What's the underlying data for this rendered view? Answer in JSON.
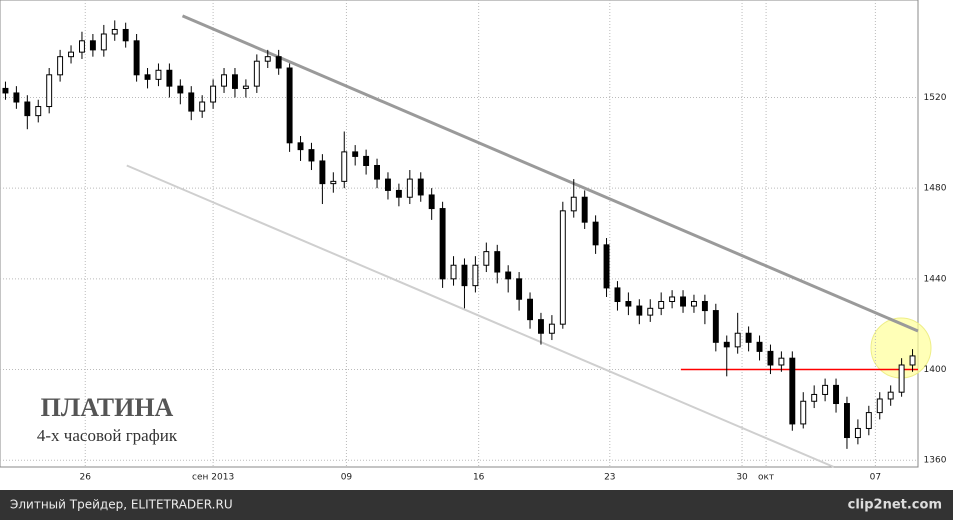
{
  "chart_data": {
    "type": "candlestick",
    "title": "ПЛАТИНА",
    "subtitle": "4-х часовой график",
    "series": [
      {
        "color_up": "#ffffff",
        "color_down": "#000000",
        "open": [
          1524,
          1522,
          1518,
          1512,
          1516,
          1530,
          1538,
          1540,
          1545,
          1541,
          1548,
          1550,
          1545,
          1530,
          1528,
          1532,
          1525,
          1522,
          1514,
          1518,
          1525,
          1530,
          1524,
          1525,
          1536,
          1538,
          1533,
          1500,
          1497,
          1492,
          1482,
          1483,
          1496,
          1494,
          1490,
          1484,
          1479,
          1476,
          1484,
          1477,
          1471,
          1440,
          1446,
          1437,
          1446,
          1452,
          1443,
          1440,
          1431,
          1422,
          1416,
          1420,
          1470,
          1476,
          1465,
          1455,
          1436,
          1430,
          1428,
          1424,
          1427,
          1430,
          1432,
          1428,
          1430,
          1426,
          1412,
          1410,
          1416,
          1412,
          1408,
          1402,
          1405,
          1376,
          1386,
          1389,
          1393,
          1385,
          1370,
          1374,
          1381,
          1387,
          1390,
          1402
        ],
        "high": [
          1527,
          1525,
          1521,
          1519,
          1533,
          1541,
          1543,
          1549,
          1548,
          1552,
          1554,
          1553,
          1548,
          1533,
          1535,
          1535,
          1528,
          1525,
          1521,
          1528,
          1533,
          1533,
          1528,
          1539,
          1541,
          1541,
          1535,
          1503,
          1500,
          1495,
          1487,
          1505,
          1499,
          1497,
          1493,
          1487,
          1482,
          1488,
          1487,
          1480,
          1474,
          1450,
          1449,
          1450,
          1456,
          1455,
          1446,
          1443,
          1434,
          1425,
          1424,
          1474,
          1484,
          1479,
          1468,
          1458,
          1439,
          1434,
          1431,
          1431,
          1434,
          1435,
          1435,
          1433,
          1433,
          1429,
          1415,
          1425,
          1419,
          1415,
          1411,
          1408,
          1408,
          1390,
          1393,
          1396,
          1396,
          1388,
          1378,
          1384,
          1390,
          1393,
          1405,
          1409
        ],
        "low": [
          1519,
          1515,
          1506,
          1509,
          1513,
          1527,
          1535,
          1537,
          1538,
          1538,
          1545,
          1542,
          1527,
          1524,
          1525,
          1520,
          1517,
          1510,
          1511,
          1515,
          1522,
          1520,
          1520,
          1522,
          1533,
          1530,
          1496,
          1492,
          1488,
          1473,
          1478,
          1480,
          1490,
          1486,
          1480,
          1475,
          1472,
          1473,
          1474,
          1466,
          1436,
          1437,
          1427,
          1434,
          1443,
          1438,
          1434,
          1426,
          1418,
          1411,
          1413,
          1418,
          1467,
          1462,
          1451,
          1432,
          1426,
          1424,
          1420,
          1421,
          1424,
          1427,
          1425,
          1425,
          1420,
          1408,
          1397,
          1407,
          1408,
          1404,
          1398,
          1399,
          1373,
          1374,
          1383,
          1386,
          1381,
          1365,
          1367,
          1371,
          1378,
          1384,
          1388,
          1399
        ],
        "close": [
          1522,
          1518,
          1512,
          1516,
          1530,
          1538,
          1540,
          1545,
          1541,
          1548,
          1550,
          1545,
          1530,
          1528,
          1532,
          1525,
          1522,
          1514,
          1518,
          1525,
          1530,
          1524,
          1525,
          1536,
          1538,
          1533,
          1500,
          1497,
          1492,
          1482,
          1483,
          1496,
          1494,
          1490,
          1484,
          1479,
          1476,
          1484,
          1477,
          1471,
          1440,
          1446,
          1437,
          1446,
          1452,
          1443,
          1440,
          1431,
          1422,
          1416,
          1420,
          1470,
          1476,
          1465,
          1455,
          1436,
          1430,
          1428,
          1424,
          1427,
          1430,
          1432,
          1428,
          1430,
          1426,
          1412,
          1410,
          1416,
          1412,
          1408,
          1402,
          1405,
          1376,
          1386,
          1389,
          1393,
          1385,
          1370,
          1374,
          1381,
          1387,
          1390,
          1402,
          1406
        ]
      }
    ],
    "lines": [
      {
        "x": [
          16.2,
          83.5
        ],
        "y": [
          1556,
          1417
        ],
        "color": "#9a9a9a",
        "width": 3
      },
      {
        "x": [
          11.1,
          75.8
        ],
        "y": [
          1490,
          1357
        ],
        "color": "#cfcfcf",
        "width": 2
      },
      {
        "x": [
          61.8,
          83.5
        ],
        "y": [
          1400,
          1400
        ],
        "color": "#ff0000",
        "width": 1.5
      }
    ],
    "xlim": [
      -0.5,
      83.5
    ],
    "ylim": [
      1357,
      1563
    ],
    "xticks": [
      {
        "value": 7.3,
        "label": "26"
      },
      {
        "value": 19.0,
        "label": "сен 2013"
      },
      {
        "value": 31.2,
        "label": "09"
      },
      {
        "value": 43.3,
        "label": "16"
      },
      {
        "value": 55.3,
        "label": "23"
      },
      {
        "value": 67.4,
        "label": "30"
      },
      {
        "value": 69.6,
        "label": "окт"
      },
      {
        "value": 79.6,
        "label": "07"
      }
    ],
    "yticks": [
      1360,
      1400,
      1440,
      1480,
      1520
    ],
    "grid": true
  },
  "footer": {
    "source": "Элитный Трейдер, ELITETRADER.RU",
    "watermark": "clip2net.com"
  }
}
